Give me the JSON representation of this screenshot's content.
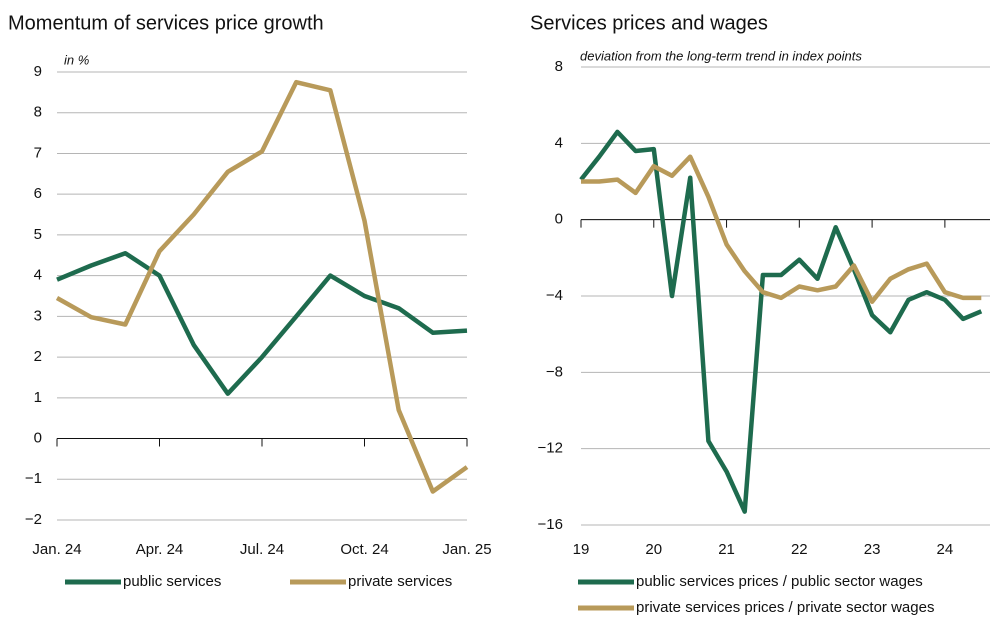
{
  "chart_data": [
    {
      "type": "line",
      "title": "Momentum of services price growth",
      "subtitle": "in %",
      "categories": [
        "Jan. 24",
        null,
        null,
        "Apr. 24",
        null,
        null,
        "Jul. 24",
        null,
        null,
        "Oct. 24",
        null,
        null,
        "Jan. 25"
      ],
      "series": [
        {
          "name": "public services",
          "color": "#1e6b4e",
          "values": [
            3.9,
            4.25,
            4.55,
            4.0,
            2.3,
            1.1,
            2.0,
            3.0,
            4.0,
            3.5,
            3.2,
            2.6,
            2.65
          ]
        },
        {
          "name": "private services",
          "color": "#b89a5a",
          "values": [
            3.45,
            2.98,
            2.8,
            4.6,
            5.5,
            6.55,
            7.05,
            8.75,
            8.55,
            5.35,
            0.7,
            -1.3,
            -0.7
          ]
        }
      ],
      "ylim": [
        -2,
        9
      ],
      "yticks": [
        {
          "value": -2,
          "label": "−2"
        },
        {
          "value": -1,
          "label": "−1"
        },
        0,
        1,
        2,
        3,
        4,
        5,
        6,
        7,
        8,
        9
      ],
      "grid": true
    },
    {
      "type": "line",
      "title": "Services prices and wages",
      "subtitle": "deviation from the long-term trend in index points",
      "x": [
        19,
        19.25,
        19.5,
        19.75,
        20,
        20.25,
        20.5,
        20.75,
        21,
        21.25,
        21.5,
        21.75,
        22,
        22.25,
        22.5,
        22.75,
        23,
        23.25,
        23.5,
        23.75,
        24,
        24.25,
        24.5
      ],
      "series": [
        {
          "name": "public services prices / public sector wages",
          "color": "#1e6b4e",
          "values": [
            2.1,
            3.3,
            4.6,
            3.6,
            3.7,
            -4.0,
            2.2,
            -11.6,
            -13.2,
            -15.3,
            -2.9,
            -2.9,
            -2.1,
            -3.1,
            -0.4,
            -2.6,
            -5.0,
            -5.9,
            -4.2,
            -3.8,
            -4.2,
            -5.2,
            -4.8
          ]
        },
        {
          "name": "private services prices / private sector wages",
          "color": "#b89a5a",
          "values": [
            2.0,
            2.0,
            2.1,
            1.4,
            2.8,
            2.3,
            3.3,
            1.2,
            -1.3,
            -2.7,
            -3.8,
            -4.1,
            -3.5,
            -3.7,
            -3.5,
            -2.4,
            -4.3,
            -3.1,
            -2.6,
            -2.3,
            -3.8,
            -4.1,
            -4.1
          ]
        }
      ],
      "xlim": [
        19,
        24.62
      ],
      "xticks": [
        19,
        20,
        21,
        22,
        23,
        24
      ],
      "ylim": [
        -16,
        8
      ],
      "yticks": [
        {
          "value": -16,
          "label": "−16"
        },
        {
          "value": -12,
          "label": "−12"
        },
        {
          "value": -8,
          "label": "−8"
        },
        {
          "value": -4,
          "label": "−4"
        },
        0,
        4,
        8
      ],
      "grid": true
    }
  ]
}
